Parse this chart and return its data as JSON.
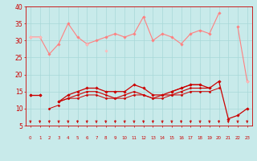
{
  "bg_color": "#c8eaea",
  "grid_color": "#a8d8d8",
  "text_color": "#cc0000",
  "x_values": [
    0,
    1,
    2,
    3,
    4,
    5,
    6,
    7,
    8,
    9,
    10,
    11,
    12,
    13,
    14,
    15,
    16,
    17,
    18,
    19,
    20,
    21,
    22,
    23
  ],
  "ylim": [
    5,
    40
  ],
  "yticks": [
    5,
    10,
    15,
    20,
    25,
    30,
    35,
    40
  ],
  "series": [
    {
      "color": "#ff8080",
      "lw": 0.8,
      "marker": "D",
      "ms": 1.8,
      "data": [
        31,
        31,
        26,
        29,
        35,
        31,
        29,
        30,
        31,
        32,
        31,
        32,
        37,
        30,
        32,
        31,
        29,
        32,
        33,
        32,
        38,
        null,
        34,
        18
      ]
    },
    {
      "color": "#ffbbbb",
      "lw": 0.8,
      "marker": "D",
      "ms": 1.8,
      "data": [
        31,
        31,
        null,
        null,
        null,
        null,
        29,
        null,
        27,
        null,
        null,
        null,
        null,
        null,
        null,
        null,
        null,
        null,
        null,
        null,
        null,
        null,
        null,
        18
      ]
    },
    {
      "color": "#cc0000",
      "lw": 0.9,
      "marker": "D",
      "ms": 1.8,
      "data": [
        14,
        14,
        null,
        12,
        14,
        15,
        16,
        16,
        15,
        15,
        15,
        17,
        16,
        14,
        14,
        15,
        16,
        17,
        17,
        16,
        18,
        7,
        8,
        10
      ]
    },
    {
      "color": "#cc0000",
      "lw": 0.8,
      "marker": "D",
      "ms": 1.5,
      "data": [
        14,
        14,
        null,
        12,
        13,
        14,
        15,
        15,
        14,
        13,
        14,
        15,
        14,
        13,
        14,
        14,
        15,
        16,
        16,
        16,
        null,
        null,
        null,
        null
      ]
    },
    {
      "color": "#cc0000",
      "lw": 0.8,
      "marker": "D",
      "ms": 1.5,
      "data": [
        null,
        null,
        null,
        null,
        null,
        null,
        null,
        null,
        null,
        null,
        null,
        null,
        null,
        null,
        null,
        15,
        16,
        17,
        17,
        null,
        null,
        null,
        null,
        null
      ]
    },
    {
      "color": "#cc0000",
      "lw": 0.7,
      "marker": "D",
      "ms": 1.5,
      "data": [
        null,
        null,
        10,
        11,
        null,
        null,
        null,
        null,
        null,
        null,
        null,
        null,
        null,
        null,
        null,
        null,
        null,
        null,
        null,
        null,
        null,
        null,
        null,
        null
      ]
    },
    {
      "color": "#cc0000",
      "lw": 0.7,
      "marker": "D",
      "ms": 1.5,
      "data": [
        14,
        14,
        null,
        12,
        13,
        13,
        14,
        14,
        13,
        13,
        13,
        14,
        14,
        13,
        13,
        14,
        14,
        15,
        15,
        15,
        16,
        null,
        null,
        null
      ]
    }
  ],
  "arrows_x": [
    0,
    1,
    2,
    3,
    4,
    5,
    6,
    7,
    8,
    9,
    10,
    11,
    12,
    13,
    14,
    15,
    16,
    17,
    18,
    19,
    20,
    21,
    22,
    23
  ]
}
